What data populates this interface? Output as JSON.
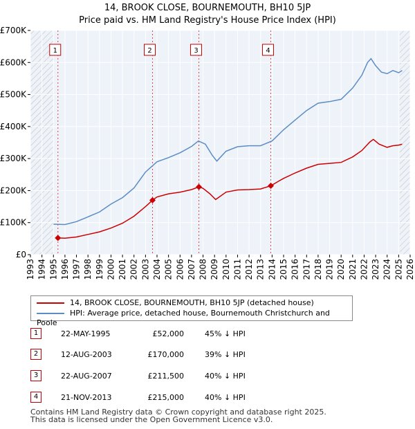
{
  "title": "14, BROOK CLOSE, BOURNEMOUTH, BH10 5JP",
  "subtitle": "Price paid vs. HM Land Registry's House Price Index (HPI)",
  "chart_data": {
    "type": "line",
    "title": "14, BROOK CLOSE, BOURNEMOUTH, BH10 5JP",
    "subtitle": "Price paid vs. HM Land Registry's House Price Index (HPI)",
    "xlim": [
      1993,
      2026
    ],
    "ylim": [
      0,
      700000
    ],
    "x_ticks": [
      1993,
      1994,
      1995,
      1996,
      1997,
      1998,
      1999,
      2000,
      2001,
      2002,
      2003,
      2004,
      2005,
      2006,
      2007,
      2008,
      2009,
      2010,
      2011,
      2012,
      2013,
      2014,
      2015,
      2016,
      2017,
      2018,
      2019,
      2020,
      2021,
      2022,
      2023,
      2024,
      2025,
      2026
    ],
    "y_ticks": [
      0,
      100000,
      200000,
      300000,
      400000,
      500000,
      600000,
      700000
    ],
    "y_tick_labels": [
      "£0",
      "£100K",
      "£200K",
      "£300K",
      "£400K",
      "£500K",
      "£600K",
      "£700K"
    ],
    "grid": true,
    "hatched_ranges": [
      [
        1993,
        1995.0
      ],
      [
        2025.1,
        2026
      ]
    ],
    "series": [
      {
        "name": "14, BROOK CLOSE, BOURNEMOUTH, BH10 5JP (detached house)",
        "color": "#cc0000",
        "points": [
          [
            1995.39,
            52000
          ],
          [
            1996.0,
            51500
          ],
          [
            1997.0,
            55000
          ],
          [
            1998.0,
            63000
          ],
          [
            1999.0,
            71000
          ],
          [
            2000.0,
            83000
          ],
          [
            2001.0,
            98000
          ],
          [
            2002.0,
            120000
          ],
          [
            2003.0,
            150000
          ],
          [
            2003.61,
            170000
          ],
          [
            2004.0,
            180000
          ],
          [
            2005.0,
            190000
          ],
          [
            2006.0,
            195000
          ],
          [
            2007.0,
            203000
          ],
          [
            2007.64,
            211500
          ],
          [
            2008.0,
            207000
          ],
          [
            2008.6,
            190000
          ],
          [
            2009.1,
            172000
          ],
          [
            2010.0,
            195000
          ],
          [
            2011.0,
            202000
          ],
          [
            2012.0,
            203000
          ],
          [
            2013.0,
            205000
          ],
          [
            2013.89,
            215000
          ],
          [
            2014.5,
            228000
          ],
          [
            2015.0,
            238000
          ],
          [
            2016.0,
            255000
          ],
          [
            2017.0,
            270000
          ],
          [
            2018.0,
            282000
          ],
          [
            2019.0,
            285000
          ],
          [
            2020.0,
            288000
          ],
          [
            2021.0,
            305000
          ],
          [
            2021.8,
            325000
          ],
          [
            2022.5,
            352000
          ],
          [
            2022.8,
            360000
          ],
          [
            2023.3,
            345000
          ],
          [
            2024.0,
            335000
          ],
          [
            2024.5,
            340000
          ],
          [
            2025.0,
            342000
          ],
          [
            2025.3,
            345000
          ]
        ]
      },
      {
        "name": "HPI: Average price, detached house, Bournemouth Christchurch and Poole",
        "color": "#5b8cc4",
        "points": [
          [
            1995.0,
            95000
          ],
          [
            1996.0,
            94000
          ],
          [
            1997.0,
            103000
          ],
          [
            1998.0,
            118000
          ],
          [
            1999.0,
            133000
          ],
          [
            2000.0,
            158000
          ],
          [
            2001.0,
            178000
          ],
          [
            2002.0,
            208000
          ],
          [
            2003.0,
            258000
          ],
          [
            2004.0,
            290000
          ],
          [
            2005.0,
            303000
          ],
          [
            2006.0,
            318000
          ],
          [
            2007.0,
            338000
          ],
          [
            2007.6,
            355000
          ],
          [
            2008.2,
            345000
          ],
          [
            2008.8,
            310000
          ],
          [
            2009.2,
            292000
          ],
          [
            2010.0,
            323000
          ],
          [
            2011.0,
            337000
          ],
          [
            2012.0,
            340000
          ],
          [
            2013.0,
            340000
          ],
          [
            2014.0,
            355000
          ],
          [
            2015.0,
            390000
          ],
          [
            2016.0,
            420000
          ],
          [
            2017.0,
            450000
          ],
          [
            2018.0,
            473000
          ],
          [
            2019.0,
            478000
          ],
          [
            2020.0,
            485000
          ],
          [
            2021.0,
            520000
          ],
          [
            2021.8,
            560000
          ],
          [
            2022.3,
            600000
          ],
          [
            2022.6,
            612000
          ],
          [
            2023.0,
            590000
          ],
          [
            2023.5,
            570000
          ],
          [
            2024.0,
            565000
          ],
          [
            2024.5,
            575000
          ],
          [
            2025.0,
            568000
          ],
          [
            2025.3,
            575000
          ]
        ]
      }
    ],
    "transactions": [
      {
        "num": "1",
        "x": 1995.39,
        "date": "22-MAY-1995",
        "price": 52000,
        "price_label": "£52,000",
        "hpi": "45% ↓ HPI"
      },
      {
        "num": "2",
        "x": 2003.61,
        "date": "12-AUG-2003",
        "price": 170000,
        "price_label": "£170,000",
        "hpi": "39% ↓ HPI"
      },
      {
        "num": "3",
        "x": 2007.64,
        "date": "22-AUG-2007",
        "price": 211500,
        "price_label": "£211,500",
        "hpi": "40% ↓ HPI"
      },
      {
        "num": "4",
        "x": 2013.89,
        "date": "21-NOV-2013",
        "price": 215000,
        "price_label": "£215,000",
        "hpi": "40% ↓ HPI"
      }
    ]
  },
  "legend": {
    "property": "14, BROOK CLOSE, BOURNEMOUTH, BH10 5JP (detached house)",
    "hpi": "HPI: Average price, detached house, Bournemouth Christchurch and Poole",
    "property_color": "#cc0000",
    "hpi_color": "#5b8cc4"
  },
  "footer": {
    "line1": "Contains HM Land Registry data © Crown copyright and database right 2025.",
    "line2": "This data is licensed under the Open Government Licence v3.0."
  }
}
